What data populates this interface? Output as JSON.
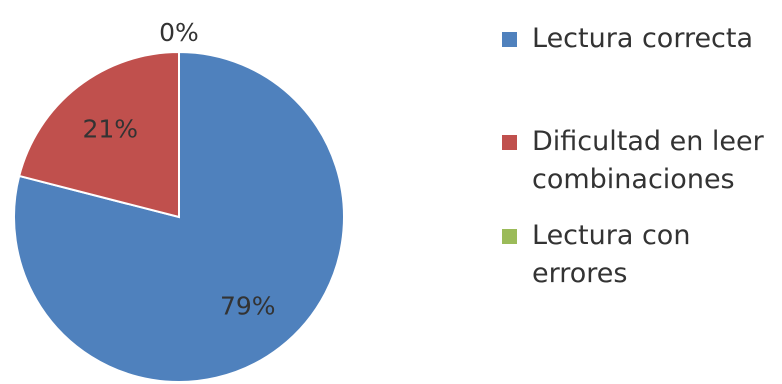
{
  "chart_data": {
    "type": "pie",
    "categories": [
      "Lectura correcta",
      "Dificultad en leer combinaciones",
      "Lectura con errores"
    ],
    "values": [
      79,
      21,
      0
    ],
    "data_labels": [
      "79%",
      "21%",
      "0%"
    ],
    "colors": [
      "#4f81bd",
      "#c0504d",
      "#9bbb59"
    ],
    "legend_position": "right",
    "start_angle": "top",
    "direction": "clockwise"
  }
}
